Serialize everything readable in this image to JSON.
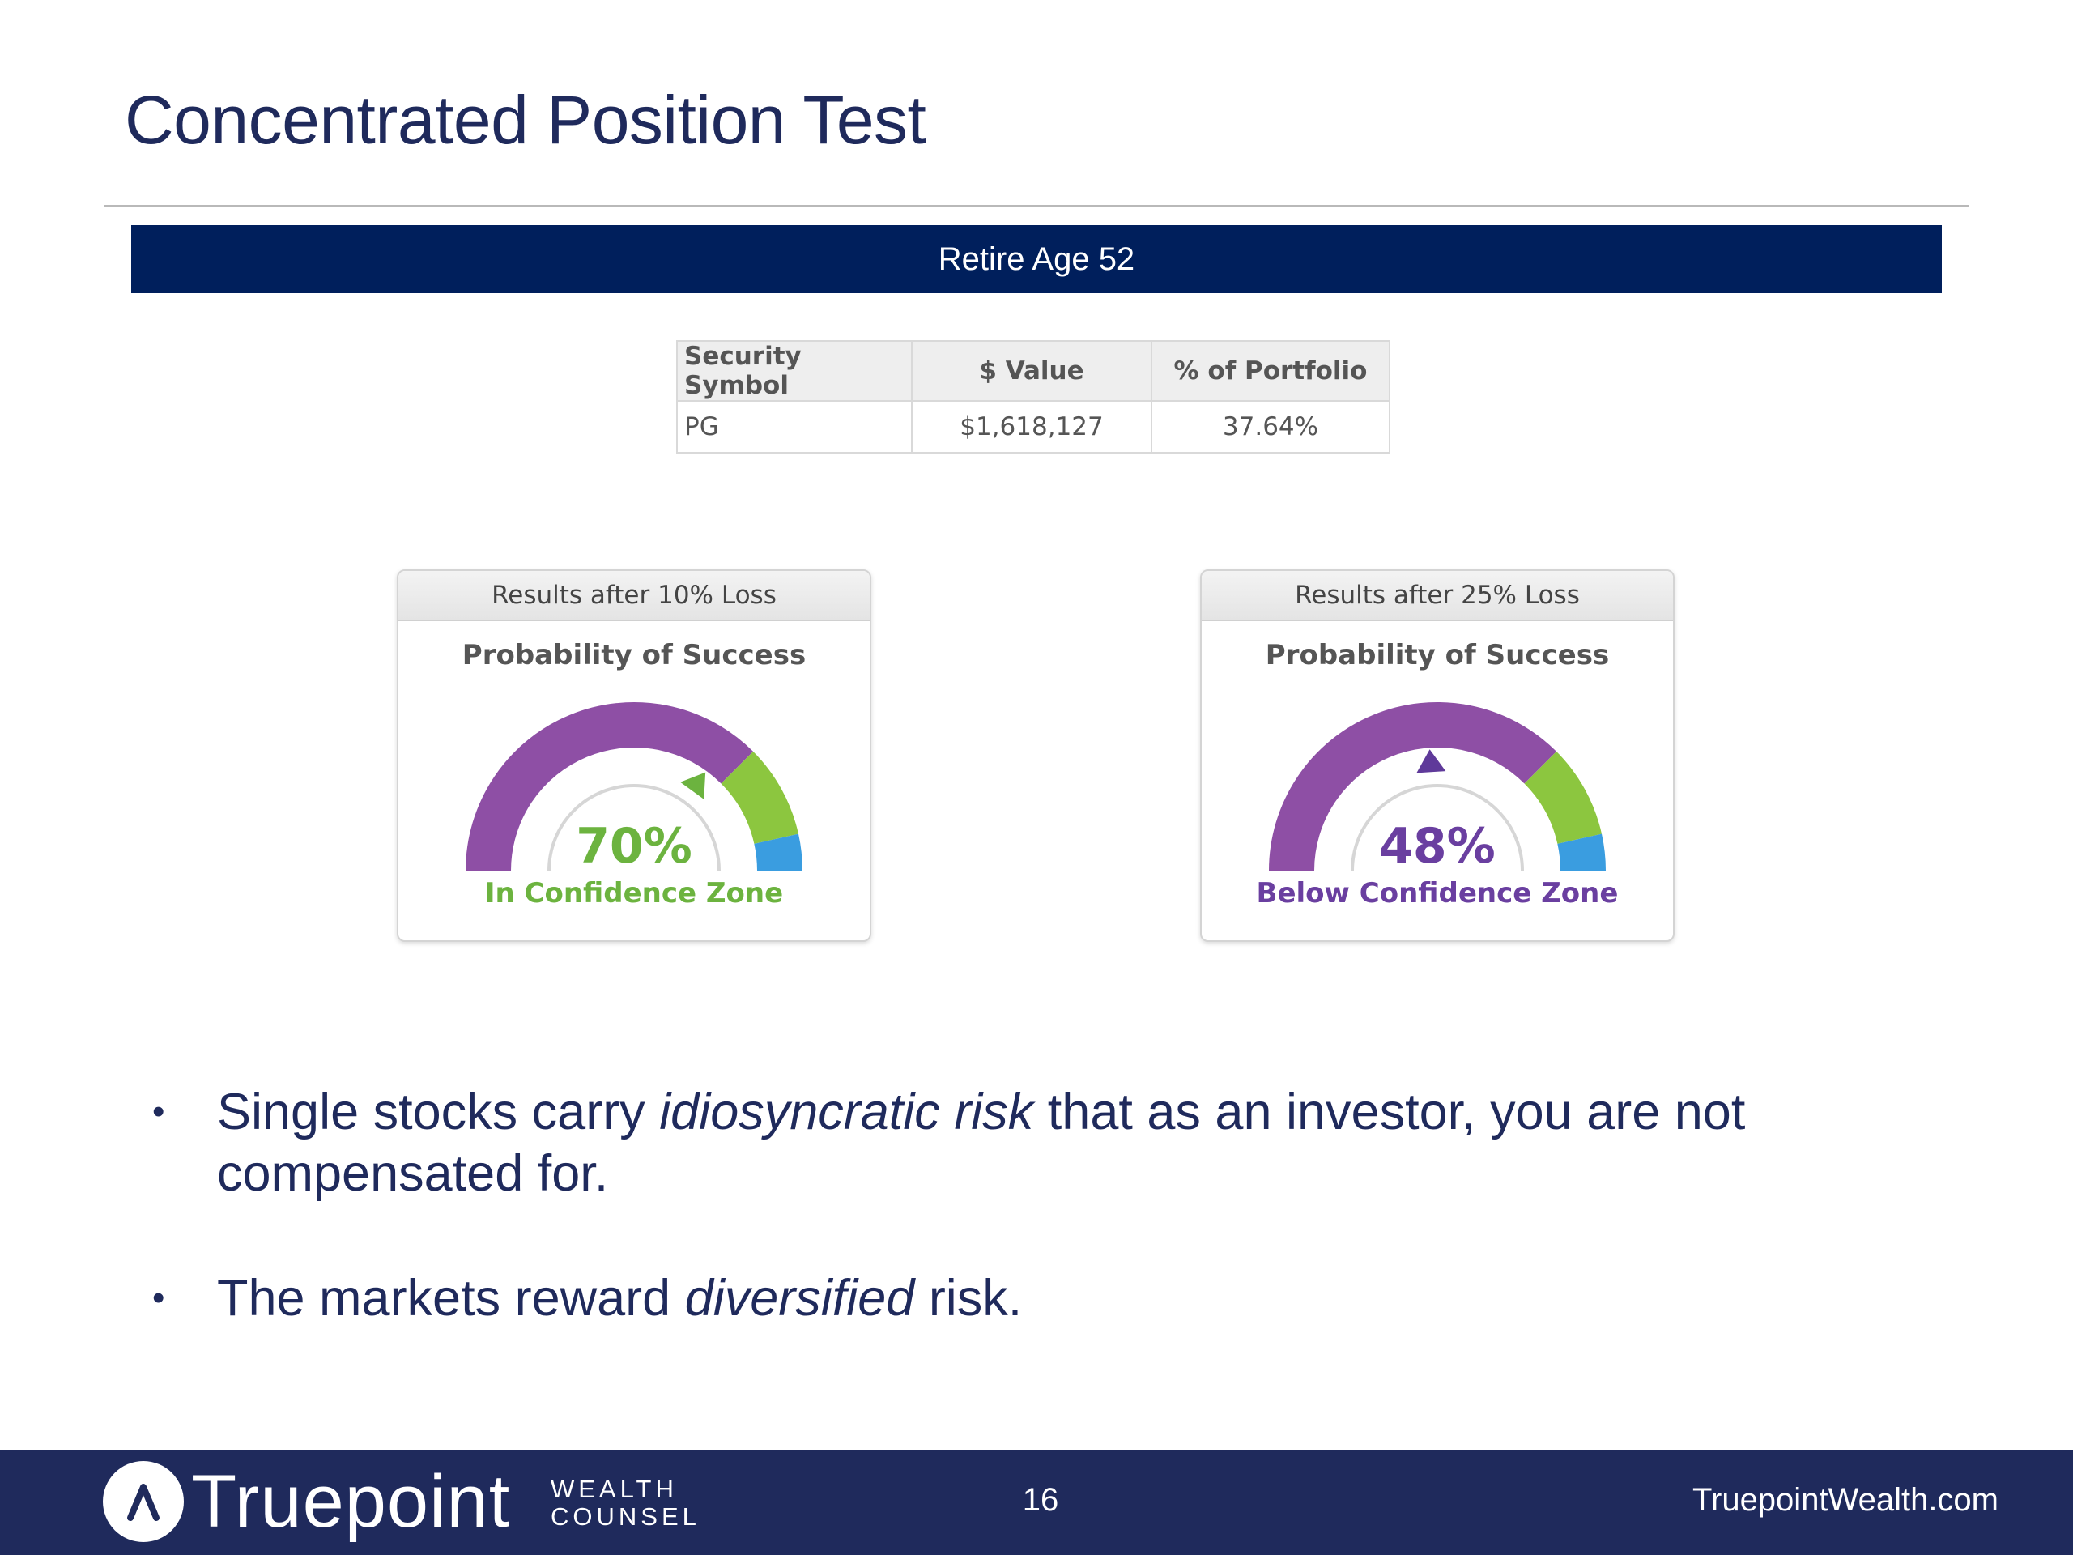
{
  "slide": {
    "title": "Concentrated Position Test",
    "banner": "Retire Age 52"
  },
  "table": {
    "headers": [
      "Security Symbol",
      "$ Value",
      "% of Portfolio"
    ],
    "rows": [
      [
        "PG",
        "$1,618,127",
        "37.64%"
      ]
    ]
  },
  "gauges": [
    {
      "header": "Results after 10% Loss",
      "subtitle": "Probability of Success",
      "value": "70%",
      "probability": 0.7,
      "zone_label": "In Confidence Zone",
      "indicator_color": "#6cb33f",
      "text_color": "#6cb33f"
    },
    {
      "header": "Results after 25% Loss",
      "subtitle": "Probability of Success",
      "value": "48%",
      "probability": 0.48,
      "zone_label": "Below Confidence Zone",
      "indicator_color": "#5f3a9a",
      "text_color": "#6a3fa0"
    }
  ],
  "gauge_colors": {
    "purple": "#8e4fa5",
    "green": "#8cc63f",
    "blue": "#3a9de0"
  },
  "bullets": [
    {
      "pre": "Single stocks carry ",
      "em": "idiosyncratic risk",
      "post": " that as an investor, you are not compensated for."
    },
    {
      "pre": "The markets reward ",
      "em": "diversified",
      "post": " risk."
    }
  ],
  "footer": {
    "brand": "Truepoint",
    "brand_sub_1": "WEALTH",
    "brand_sub_2": "COUNSEL",
    "page_number": "16",
    "website": "TruepointWealth.com"
  }
}
